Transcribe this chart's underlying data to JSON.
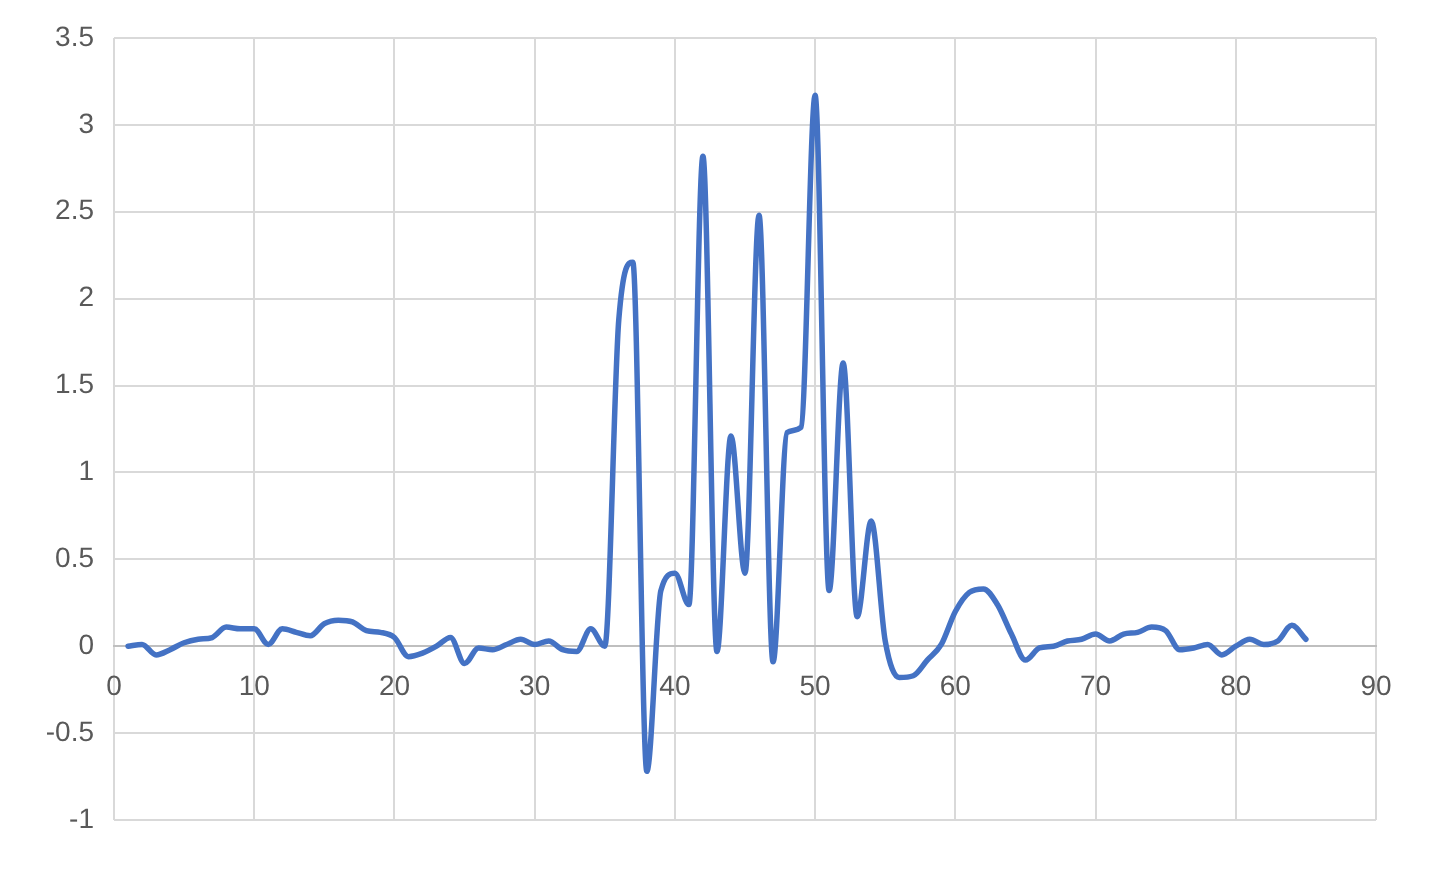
{
  "chart_data": {
    "type": "line",
    "x": [
      1,
      2,
      3,
      4,
      5,
      6,
      7,
      8,
      9,
      10,
      11,
      12,
      13,
      14,
      15,
      16,
      17,
      18,
      19,
      20,
      21,
      22,
      23,
      24,
      25,
      26,
      27,
      28,
      29,
      30,
      31,
      32,
      33,
      34,
      35,
      36,
      37,
      38,
      39,
      40,
      41,
      42,
      43,
      44,
      45,
      46,
      47,
      48,
      49,
      50,
      51,
      52,
      53,
      54,
      55,
      56,
      57,
      58,
      59,
      60,
      61,
      62,
      63,
      64,
      65,
      66,
      67,
      68,
      69,
      70,
      71,
      72,
      73,
      74,
      75,
      76,
      77,
      78,
      79,
      80,
      81,
      82,
      83,
      84,
      85
    ],
    "values": [
      0.0,
      0.01,
      -0.05,
      -0.02,
      0.02,
      0.04,
      0.05,
      0.11,
      0.1,
      0.1,
      0.01,
      0.1,
      0.08,
      0.06,
      0.13,
      0.15,
      0.14,
      0.09,
      0.08,
      0.05,
      -0.06,
      -0.04,
      0.0,
      0.05,
      -0.1,
      -0.01,
      -0.02,
      0.01,
      0.04,
      0.01,
      0.03,
      -0.02,
      -0.03,
      0.1,
      0.0,
      1.88,
      2.21,
      -0.72,
      0.32,
      0.42,
      0.24,
      2.82,
      -0.03,
      1.21,
      0.42,
      2.48,
      -0.09,
      1.23,
      1.26,
      3.17,
      0.32,
      1.63,
      0.17,
      0.72,
      0.03,
      -0.18,
      -0.17,
      -0.08,
      0.01,
      0.2,
      0.31,
      0.33,
      0.24,
      0.07,
      -0.08,
      -0.01,
      0.0,
      0.03,
      0.04,
      0.07,
      0.03,
      0.07,
      0.08,
      0.11,
      0.09,
      -0.02,
      -0.01,
      0.01,
      -0.05,
      0.0,
      0.04,
      0.01,
      0.03,
      0.12,
      0.04
    ],
    "color": "#4472c4",
    "xlim": [
      0,
      90
    ],
    "xticks": [
      0,
      10,
      20,
      30,
      40,
      50,
      60,
      70,
      80,
      90
    ],
    "ylim": [
      -1,
      3.5
    ],
    "yticks": [
      -1,
      -0.5,
      0,
      0.5,
      1,
      1.5,
      2,
      2.5,
      3,
      3.5
    ],
    "grid": true
  }
}
